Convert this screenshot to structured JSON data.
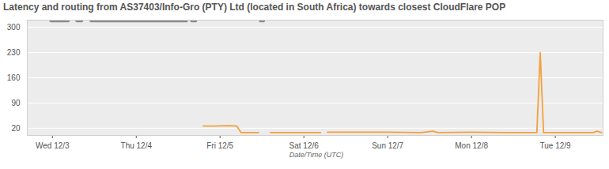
{
  "chart_data": {
    "type": "line",
    "title": "Latency and routing from AS37403/Info-Gro (PTY) Ltd (located in South Africa) towards closest CloudFlare POP",
    "xlabel": "Date/Time (UTC)",
    "x": [
      2.98,
      3.19,
      3.24,
      3.29,
      3.35,
      3.4,
      3.46,
      3.8,
      4.2,
      4.6,
      4.63,
      4.66,
      4.71,
      4.76,
      4.8,
      4.95,
      5.1,
      5.2,
      5.25,
      5.46,
      5.48,
      5.52,
      5.6,
      5.9,
      6.2,
      6.24,
      6.28,
      6.6,
      7.0,
      7.4,
      7.54,
      7.6,
      8.0,
      8.4,
      8.78,
      8.82,
      8.86,
      9.2,
      9.45,
      9.5,
      9.55
    ],
    "series": [
      {
        "color": "#8c8c8c",
        "values": [
          318,
          318,
          null,
          318,
          318,
          null,
          318,
          318,
          318,
          318,
          null,
          318,
          318,
          null,
          null,
          null,
          null,
          null,
          null,
          null,
          318,
          318,
          null,
          null,
          null,
          null,
          null,
          null,
          null,
          null,
          null,
          null,
          null,
          null,
          null,
          null,
          null,
          null,
          null,
          null,
          null
        ]
      },
      {
        "color": "#f5a03c",
        "values": [
          null,
          null,
          null,
          null,
          null,
          null,
          null,
          null,
          null,
          null,
          null,
          null,
          null,
          null,
          26,
          26,
          27,
          26,
          8,
          8,
          null,
          null,
          8,
          8,
          8,
          null,
          9,
          9,
          9,
          8,
          12,
          8,
          9,
          8,
          8,
          230,
          8,
          8,
          8,
          12,
          8
        ]
      }
    ],
    "xlim": [
      2.7,
      9.57
    ],
    "xticks": [
      {
        "value": 3,
        "label": "Wed 12/3"
      },
      {
        "value": 4,
        "label": "Thu 12/4"
      },
      {
        "value": 5,
        "label": "Fri 12/5"
      },
      {
        "value": 6,
        "label": "Sat 12/6"
      },
      {
        "value": 7,
        "label": "Sun 12/7"
      },
      {
        "value": 8,
        "label": "Mon 12/8"
      },
      {
        "value": 9,
        "label": "Tue 12/9"
      }
    ],
    "ylim": [
      0,
      320
    ],
    "yticks": [
      20,
      90,
      160,
      230,
      300
    ],
    "grid": "y"
  }
}
